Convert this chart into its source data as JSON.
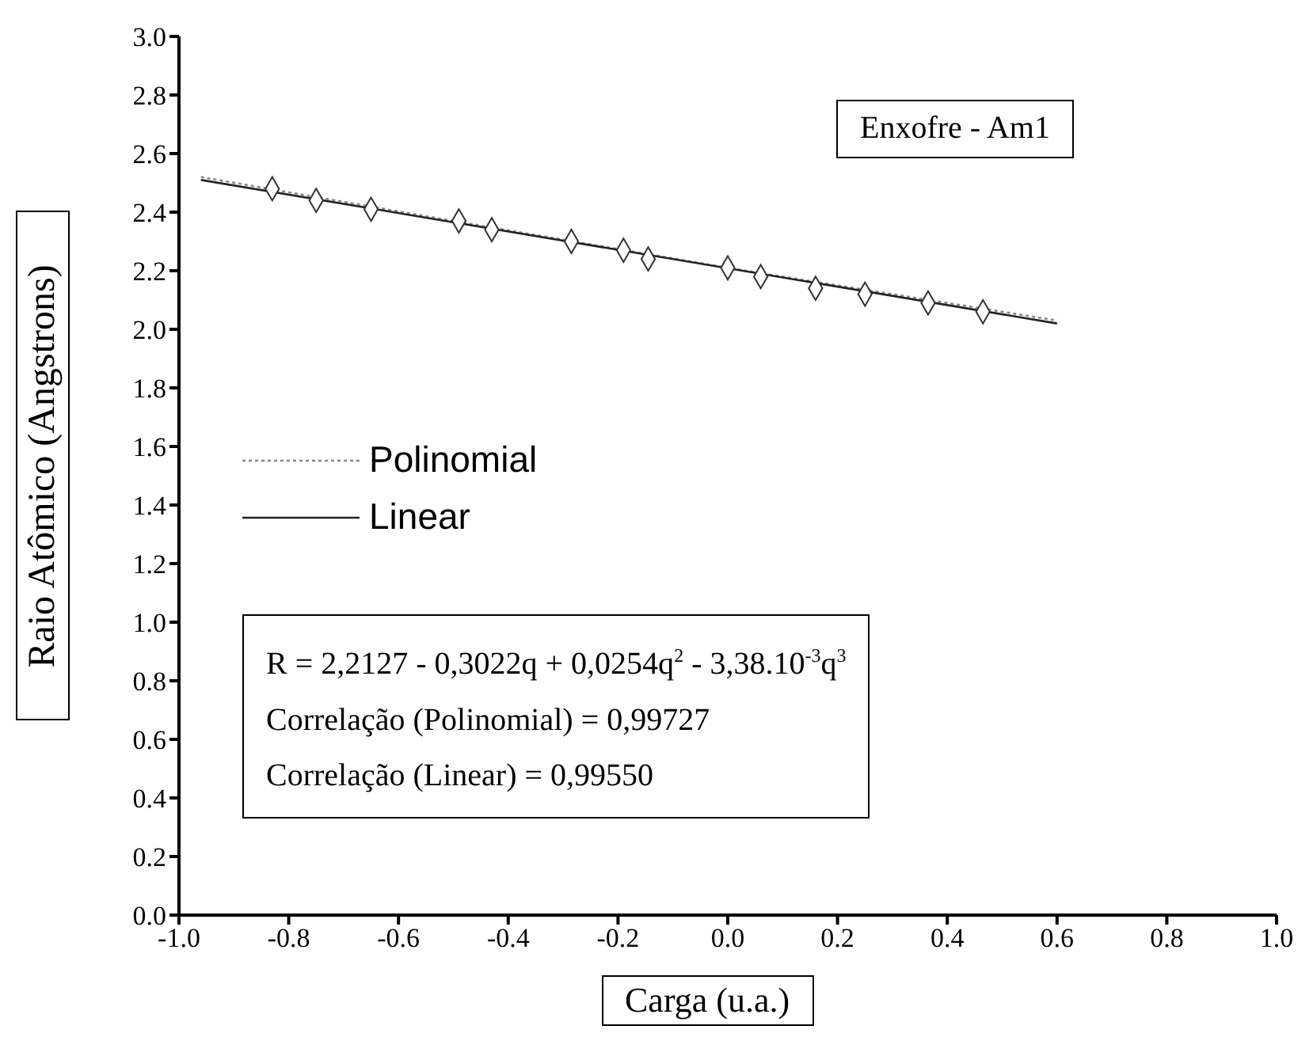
{
  "chart_data": {
    "type": "scatter",
    "title": "Enxofre - Am1",
    "xlabel": "Carga (u.a.)",
    "ylabel": "Raio Atômico (Angstrons)",
    "xlim": [
      -1.0,
      1.0
    ],
    "xticks": [
      {
        "value": -1,
        "label": "-1.0"
      },
      -0.8,
      -0.6,
      -0.4,
      -0.2,
      {
        "value": 0,
        "label": "0.0"
      },
      0.2,
      0.4,
      0.6,
      0.8,
      {
        "value": 1,
        "label": "1.0"
      }
    ],
    "ylim": [
      0.0,
      3.0
    ],
    "yticks": [
      {
        "value": 0,
        "label": "0.0"
      },
      0.2,
      0.4,
      0.6,
      0.8,
      {
        "value": 1,
        "label": "1.0"
      },
      1.2,
      1.4,
      1.6,
      1.8,
      {
        "value": 2,
        "label": "2.0"
      },
      2.2,
      2.4,
      2.6,
      2.8,
      {
        "value": 3,
        "label": "3.0"
      }
    ],
    "legend": "left",
    "annotations": [
      "R = 2,2127 - 0,3022q + 0,0254q$^{2}$ - 3,38.10$^{-3}$q$^{3}$",
      "Correlação (Polinomial) = 0,99727",
      "Correlação (Linear) = 0,99550"
    ],
    "series": [
      {
        "type": "scatter",
        "marker": "diamond",
        "color": "#333333",
        "x": [
          -0.83,
          -0.75,
          -0.65,
          -0.49,
          -0.43,
          -0.285,
          -0.19,
          -0.145,
          0.0,
          0.06,
          0.16,
          0.25,
          0.365,
          0.465
        ],
        "values": [
          2.48,
          2.44,
          2.41,
          2.37,
          2.34,
          2.3,
          2.27,
          2.24,
          2.21,
          2.18,
          2.14,
          2.12,
          2.09,
          2.06
        ]
      },
      {
        "type": "line",
        "name": "Polinomial",
        "color": "#888888",
        "line_style": "dotted",
        "marker": "none",
        "x": [
          -0.96,
          -0.5,
          0.0,
          0.3,
          0.6
        ],
        "values": [
          2.52,
          2.37,
          2.21,
          2.12,
          2.03
        ]
      },
      {
        "type": "line",
        "name": "Linear",
        "color": "#222222",
        "line_style": "solid",
        "marker": "none",
        "x": [
          -0.96,
          0.6
        ],
        "values": [
          2.51,
          2.02
        ]
      }
    ]
  }
}
